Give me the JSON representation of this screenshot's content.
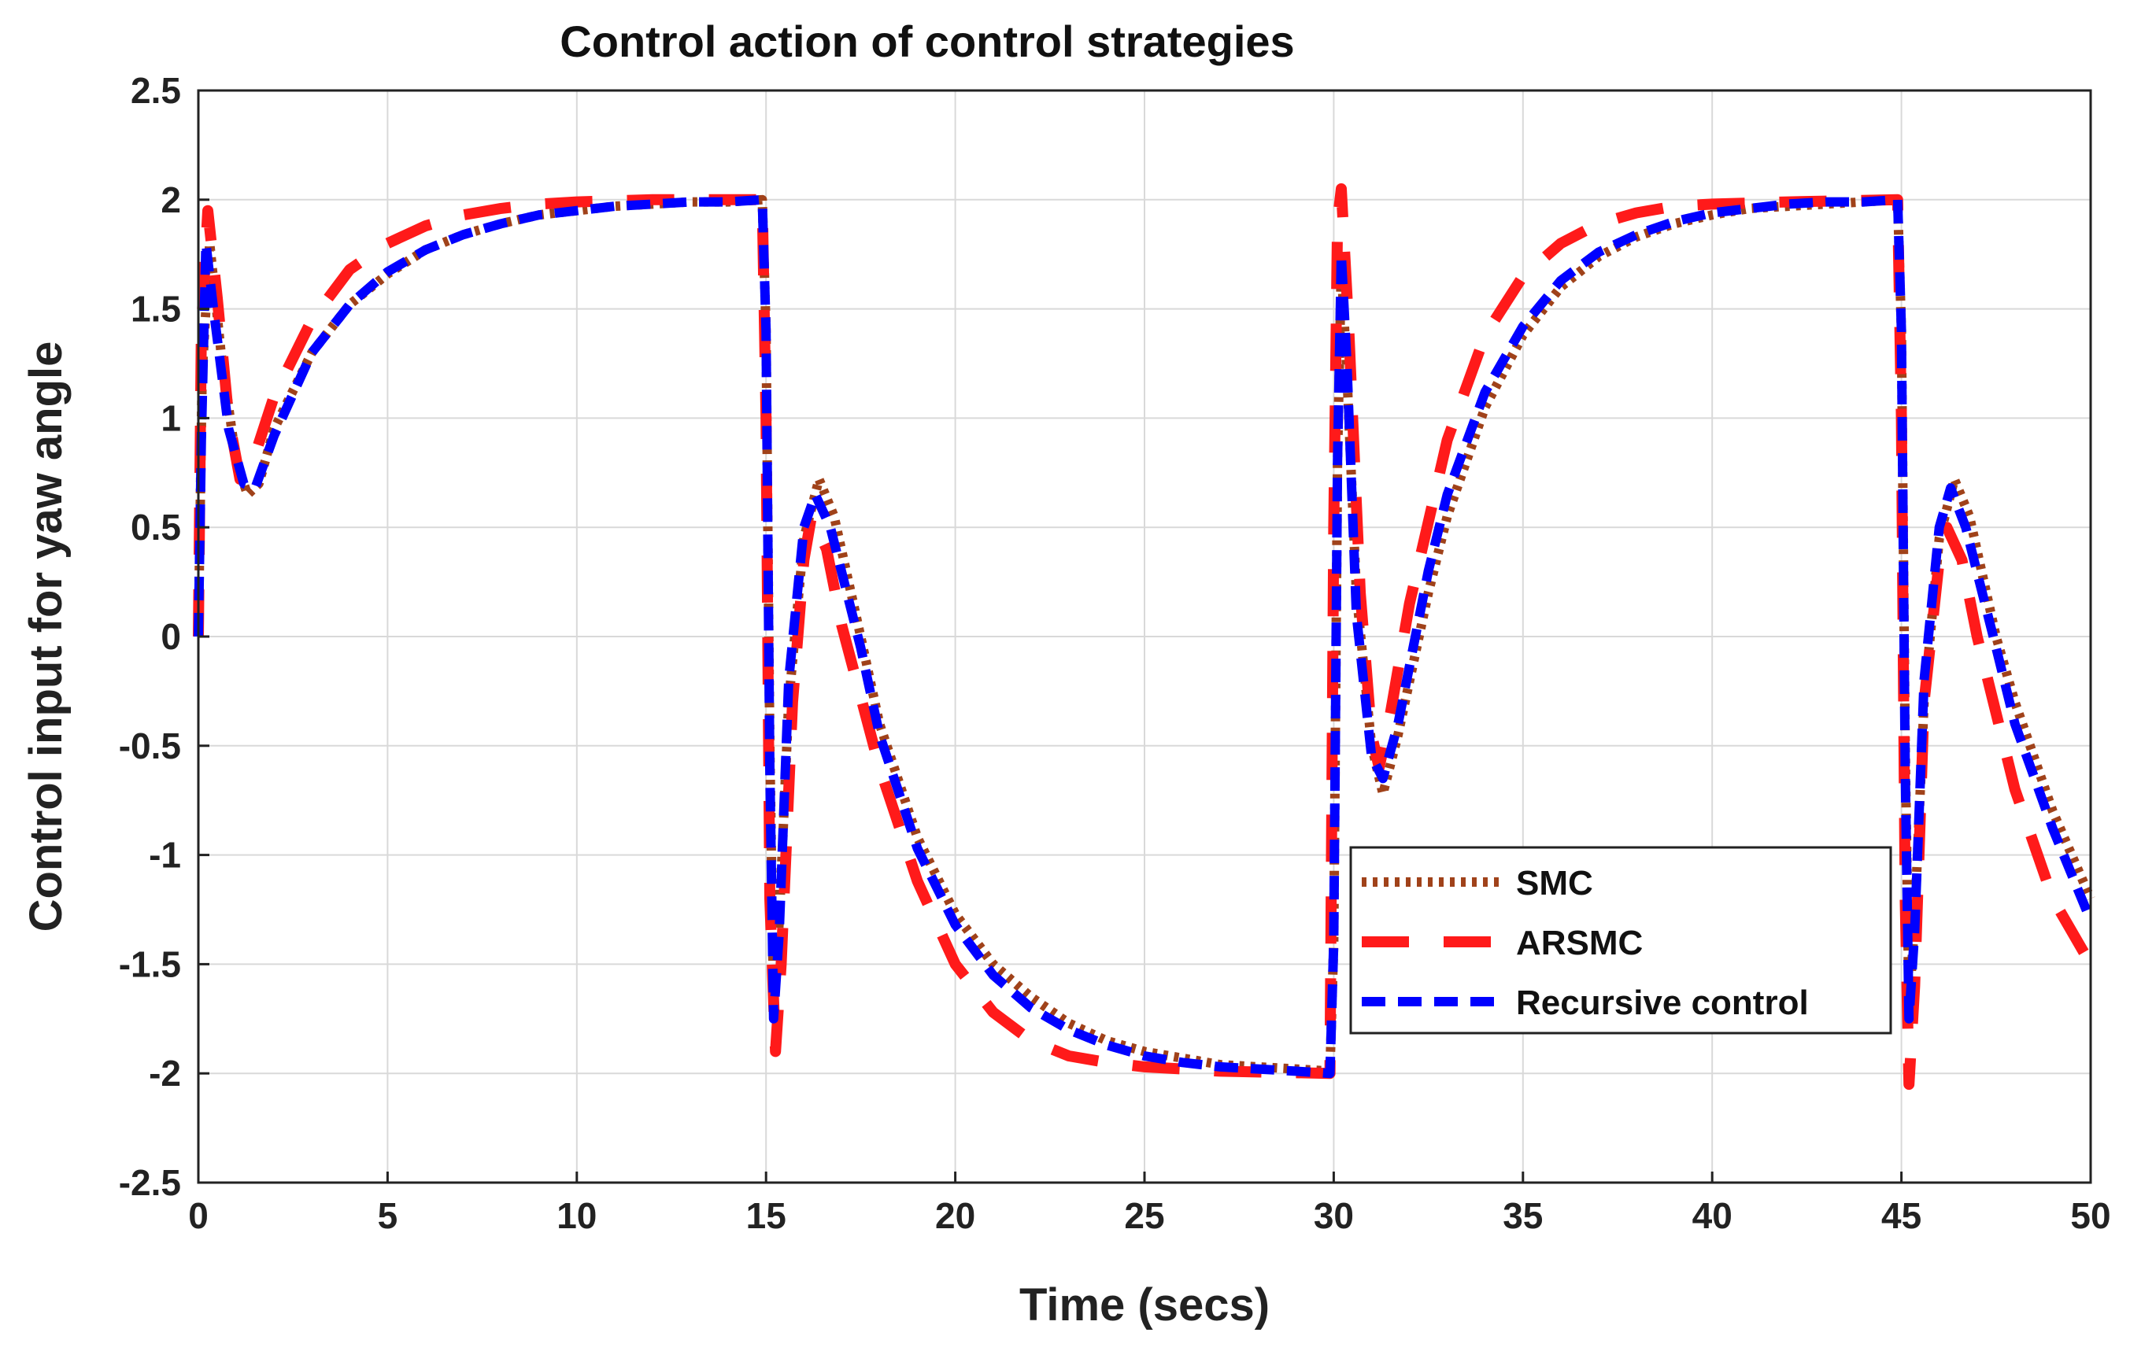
{
  "chart_data": {
    "type": "line",
    "title": "Control action of control strategies",
    "xlabel": "Time (secs)",
    "ylabel": "Control input for yaw angle",
    "xlim": [
      0,
      50
    ],
    "ylim": [
      -2.5,
      2.5
    ],
    "xticks": [
      0,
      5,
      10,
      15,
      20,
      25,
      30,
      35,
      40,
      45,
      50
    ],
    "yticks": [
      2.5,
      2,
      1.5,
      1,
      0.5,
      0,
      -0.5,
      -1,
      -1.5,
      -2,
      -2.5
    ],
    "xtick_labels": [
      "0",
      "5",
      "10",
      "15",
      "20",
      "25",
      "30",
      "35",
      "40",
      "45",
      "50"
    ],
    "ytick_labels": [
      "2.5",
      "2",
      "1.5",
      "1",
      "0.5",
      "0",
      "-0.5",
      "-1",
      "-1.5",
      "-2",
      "-2.5"
    ],
    "grid": true,
    "legend_position": "inside, right of center",
    "series": [
      {
        "name": "SMC",
        "color": "#a0421a",
        "style": "dotted",
        "points": [
          [
            0,
            0
          ],
          [
            0.1,
            1.2
          ],
          [
            0.3,
            1.8
          ],
          [
            0.6,
            1.3
          ],
          [
            1.0,
            0.8
          ],
          [
            1.3,
            0.65
          ],
          [
            1.6,
            0.7
          ],
          [
            2,
            0.95
          ],
          [
            3,
            1.3
          ],
          [
            4,
            1.52
          ],
          [
            5,
            1.66
          ],
          [
            6,
            1.77
          ],
          [
            7,
            1.84
          ],
          [
            8,
            1.89
          ],
          [
            9,
            1.93
          ],
          [
            10,
            1.95
          ],
          [
            11,
            1.97
          ],
          [
            12,
            1.98
          ],
          [
            13,
            1.99
          ],
          [
            14,
            1.99
          ],
          [
            14.9,
            2.0
          ],
          [
            15.0,
            1.4
          ],
          [
            15.1,
            -0.5
          ],
          [
            15.2,
            -1.7
          ],
          [
            15.35,
            -1.3
          ],
          [
            15.6,
            -0.3
          ],
          [
            16,
            0.45
          ],
          [
            16.4,
            0.72
          ],
          [
            16.8,
            0.55
          ],
          [
            17.5,
            0.0
          ],
          [
            18,
            -0.4
          ],
          [
            19,
            -0.92
          ],
          [
            20,
            -1.27
          ],
          [
            21,
            -1.5
          ],
          [
            22,
            -1.65
          ],
          [
            23,
            -1.77
          ],
          [
            24,
            -1.85
          ],
          [
            25,
            -1.9
          ],
          [
            26,
            -1.93
          ],
          [
            27,
            -1.96
          ],
          [
            28,
            -1.97
          ],
          [
            29,
            -1.98
          ],
          [
            29.9,
            -1.99
          ],
          [
            30.0,
            -1.4
          ],
          [
            30.1,
            0.8
          ],
          [
            30.2,
            1.7
          ],
          [
            30.35,
            1.2
          ],
          [
            30.6,
            0.2
          ],
          [
            31.0,
            -0.5
          ],
          [
            31.3,
            -0.72
          ],
          [
            31.7,
            -0.45
          ],
          [
            32.5,
            0.2
          ],
          [
            33,
            0.55
          ],
          [
            34,
            1.05
          ],
          [
            35,
            1.38
          ],
          [
            36,
            1.6
          ],
          [
            37,
            1.74
          ],
          [
            38,
            1.83
          ],
          [
            39,
            1.89
          ],
          [
            40,
            1.93
          ],
          [
            41,
            1.96
          ],
          [
            42,
            1.97
          ],
          [
            43,
            1.98
          ],
          [
            44,
            1.99
          ],
          [
            44.9,
            2.0
          ],
          [
            45.0,
            1.4
          ],
          [
            45.1,
            -0.5
          ],
          [
            45.2,
            -1.7
          ],
          [
            45.35,
            -1.3
          ],
          [
            45.6,
            -0.3
          ],
          [
            46,
            0.45
          ],
          [
            46.4,
            0.72
          ],
          [
            46.8,
            0.55
          ],
          [
            47.5,
            0.0
          ],
          [
            48,
            -0.3
          ],
          [
            49,
            -0.8
          ],
          [
            50,
            -1.2
          ]
        ]
      },
      {
        "name": "ARSMC",
        "color": "#ff1a1a",
        "style": "long-dashed",
        "points": [
          [
            0,
            0
          ],
          [
            0.08,
            1.4
          ],
          [
            0.25,
            1.95
          ],
          [
            0.5,
            1.55
          ],
          [
            0.8,
            1.0
          ],
          [
            1.1,
            0.72
          ],
          [
            1.4,
            0.78
          ],
          [
            2,
            1.1
          ],
          [
            3,
            1.45
          ],
          [
            4,
            1.68
          ],
          [
            5,
            1.8
          ],
          [
            6,
            1.88
          ],
          [
            7,
            1.93
          ],
          [
            8,
            1.96
          ],
          [
            9,
            1.98
          ],
          [
            10,
            1.99
          ],
          [
            12,
            2.0
          ],
          [
            14.9,
            2.0
          ],
          [
            15.0,
            1.0
          ],
          [
            15.1,
            -1.2
          ],
          [
            15.25,
            -1.9
          ],
          [
            15.4,
            -1.5
          ],
          [
            15.7,
            -0.3
          ],
          [
            16,
            0.35
          ],
          [
            16.2,
            0.55
          ],
          [
            16.6,
            0.4
          ],
          [
            17,
            0.05
          ],
          [
            18,
            -0.6
          ],
          [
            19,
            -1.12
          ],
          [
            20,
            -1.5
          ],
          [
            21,
            -1.72
          ],
          [
            22,
            -1.85
          ],
          [
            23,
            -1.92
          ],
          [
            24,
            -1.95
          ],
          [
            25,
            -1.97
          ],
          [
            26,
            -1.98
          ],
          [
            27,
            -1.99
          ],
          [
            29.9,
            -2.0
          ],
          [
            30.0,
            0.5
          ],
          [
            30.1,
            1.9
          ],
          [
            30.2,
            2.05
          ],
          [
            30.4,
            1.4
          ],
          [
            30.7,
            0.2
          ],
          [
            31.0,
            -0.45
          ],
          [
            31.2,
            -0.6
          ],
          [
            31.5,
            -0.35
          ],
          [
            32,
            0.15
          ],
          [
            33,
            0.9
          ],
          [
            34,
            1.38
          ],
          [
            35,
            1.65
          ],
          [
            36,
            1.8
          ],
          [
            37,
            1.89
          ],
          [
            38,
            1.94
          ],
          [
            39,
            1.97
          ],
          [
            40,
            1.98
          ],
          [
            42,
            1.99
          ],
          [
            44.9,
            2.0
          ],
          [
            45.0,
            1.0
          ],
          [
            45.1,
            -1.2
          ],
          [
            45.2,
            -2.05
          ],
          [
            45.35,
            -1.6
          ],
          [
            45.6,
            -0.3
          ],
          [
            46,
            0.35
          ],
          [
            46.2,
            0.5
          ],
          [
            46.6,
            0.35
          ],
          [
            47,
            0.0
          ],
          [
            48,
            -0.7
          ],
          [
            49,
            -1.2
          ],
          [
            50,
            -1.5
          ]
        ]
      },
      {
        "name": "Recursive control",
        "color": "#0000ff",
        "style": "dashed",
        "points": [
          [
            0,
            0
          ],
          [
            0.08,
            0.9
          ],
          [
            0.2,
            1.8
          ],
          [
            0.4,
            1.5
          ],
          [
            0.8,
            0.95
          ],
          [
            1.2,
            0.7
          ],
          [
            1.5,
            0.68
          ],
          [
            2,
            0.92
          ],
          [
            3,
            1.3
          ],
          [
            4,
            1.52
          ],
          [
            5,
            1.67
          ],
          [
            6,
            1.77
          ],
          [
            7,
            1.84
          ],
          [
            8,
            1.89
          ],
          [
            9,
            1.93
          ],
          [
            10,
            1.95
          ],
          [
            11,
            1.97
          ],
          [
            12,
            1.98
          ],
          [
            13,
            1.99
          ],
          [
            14,
            1.99
          ],
          [
            14.9,
            2.0
          ],
          [
            15.0,
            1.4
          ],
          [
            15.1,
            -0.6
          ],
          [
            15.2,
            -1.75
          ],
          [
            15.35,
            -1.35
          ],
          [
            15.6,
            -0.2
          ],
          [
            16,
            0.5
          ],
          [
            16.3,
            0.65
          ],
          [
            16.7,
            0.5
          ],
          [
            17.5,
            -0.05
          ],
          [
            18,
            -0.45
          ],
          [
            19,
            -0.97
          ],
          [
            20,
            -1.32
          ],
          [
            21,
            -1.55
          ],
          [
            22,
            -1.7
          ],
          [
            23,
            -1.8
          ],
          [
            24,
            -1.87
          ],
          [
            25,
            -1.92
          ],
          [
            26,
            -1.95
          ],
          [
            27,
            -1.97
          ],
          [
            28,
            -1.98
          ],
          [
            29,
            -1.99
          ],
          [
            29.9,
            -2.0
          ],
          [
            30.0,
            -1.4
          ],
          [
            30.1,
            0.8
          ],
          [
            30.2,
            1.75
          ],
          [
            30.35,
            1.25
          ],
          [
            30.6,
            0.1
          ],
          [
            31.0,
            -0.55
          ],
          [
            31.3,
            -0.65
          ],
          [
            31.7,
            -0.4
          ],
          [
            32.5,
            0.3
          ],
          [
            33,
            0.65
          ],
          [
            34,
            1.12
          ],
          [
            35,
            1.42
          ],
          [
            36,
            1.63
          ],
          [
            37,
            1.76
          ],
          [
            38,
            1.84
          ],
          [
            39,
            1.9
          ],
          [
            40,
            1.94
          ],
          [
            41,
            1.96
          ],
          [
            42,
            1.98
          ],
          [
            43,
            1.99
          ],
          [
            44,
            1.99
          ],
          [
            44.9,
            2.0
          ],
          [
            45.0,
            1.4
          ],
          [
            45.1,
            -0.6
          ],
          [
            45.2,
            -1.75
          ],
          [
            45.35,
            -1.35
          ],
          [
            45.6,
            -0.2
          ],
          [
            46,
            0.5
          ],
          [
            46.3,
            0.68
          ],
          [
            46.7,
            0.5
          ],
          [
            47.5,
            -0.05
          ],
          [
            48,
            -0.4
          ],
          [
            49,
            -0.88
          ],
          [
            50,
            -1.3
          ]
        ]
      }
    ]
  }
}
